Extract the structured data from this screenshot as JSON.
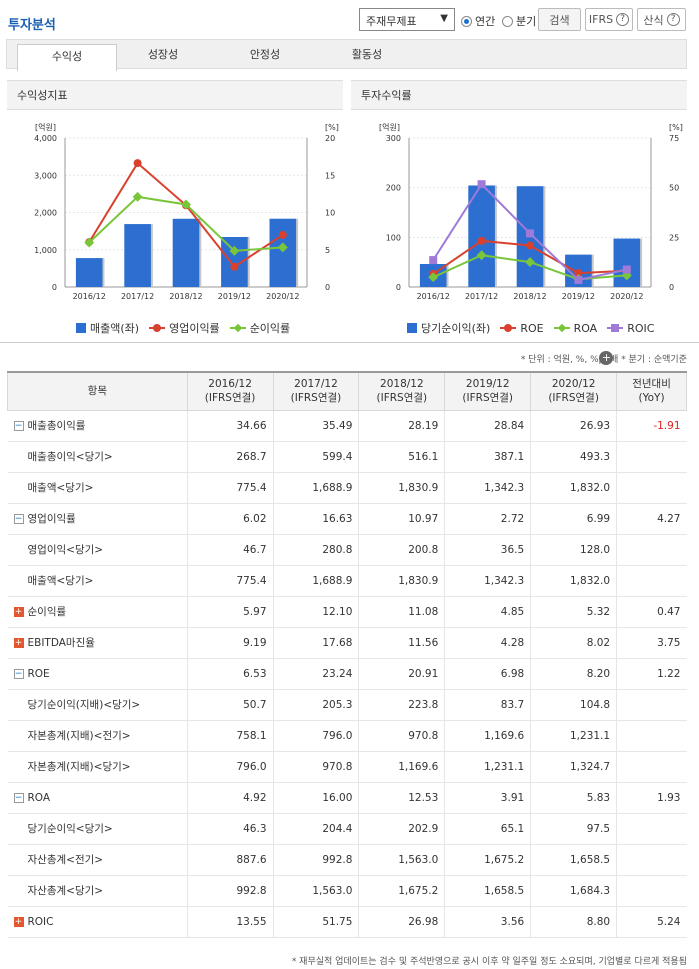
{
  "header": {
    "title": "투자분석",
    "select_value": "주재무제표",
    "radio_annual": "연간",
    "radio_quarter": "분기",
    "search_label": "검색",
    "ifrs_label": "IFRS",
    "formula_label": "산식",
    "help_glyph": "?"
  },
  "tabs": [
    "수익성",
    "성장성",
    "안정성",
    "활동성"
  ],
  "left_panel": {
    "title": "수익성지표",
    "y_left_unit": "[억원]",
    "y_right_unit": "[%]"
  },
  "right_panel": {
    "title": "투자수익률",
    "y_left_unit": "[억원]",
    "y_right_unit": "[%]"
  },
  "chart_data": [
    {
      "type": "bar",
      "categories": [
        "2016/12",
        "2017/12",
        "2018/12",
        "2019/12",
        "2020/12"
      ],
      "ylim": [
        0,
        4000
      ],
      "y2lim": [
        0,
        20
      ],
      "y_ticks": [
        "0",
        "1,000",
        "2,000",
        "3,000",
        "4,000"
      ],
      "y2_ticks": [
        "0",
        "5",
        "10",
        "15",
        "20"
      ],
      "series": [
        {
          "name": "매출액(좌)",
          "kind": "bar",
          "color": "#2c6fd1",
          "values": [
            775.4,
            1688.9,
            1830.9,
            1342.3,
            1832.0
          ]
        },
        {
          "name": "영업이익률",
          "kind": "line",
          "marker": "circle",
          "color": "#d9412e",
          "values": [
            6.02,
            16.63,
            10.97,
            2.72,
            6.99
          ]
        },
        {
          "name": "순이익률",
          "kind": "line",
          "marker": "diamond",
          "color": "#7ac63a",
          "values": [
            5.97,
            12.1,
            11.08,
            4.85,
            5.32
          ]
        }
      ]
    },
    {
      "type": "bar",
      "categories": [
        "2016/12",
        "2017/12",
        "2018/12",
        "2019/12",
        "2020/12"
      ],
      "ylim": [
        0,
        300
      ],
      "y2lim": [
        0,
        75
      ],
      "y_ticks": [
        "0",
        "100",
        "200",
        "300"
      ],
      "y2_ticks": [
        "0",
        "25",
        "50",
        "75"
      ],
      "series": [
        {
          "name": "당기순이익(좌)",
          "kind": "bar",
          "color": "#2c6fd1",
          "values": [
            46.3,
            204.4,
            202.9,
            65.1,
            97.5
          ]
        },
        {
          "name": "ROE",
          "kind": "line",
          "marker": "circle",
          "color": "#d9412e",
          "values": [
            6.53,
            23.24,
            20.91,
            6.98,
            8.2
          ]
        },
        {
          "name": "ROA",
          "kind": "line",
          "marker": "diamond",
          "color": "#7ac63a",
          "values": [
            4.92,
            16.0,
            12.53,
            3.91,
            5.83
          ]
        },
        {
          "name": "ROIC",
          "kind": "line",
          "marker": "square",
          "color": "#a07ad8",
          "values": [
            13.55,
            51.75,
            26.98,
            3.56,
            8.8
          ]
        }
      ]
    }
  ],
  "unit_note": "* 단위 : 억원, %, %p, 배   * 분기 : 순액기준",
  "table": {
    "headers": [
      {
        "l1": "항목",
        "l2": ""
      },
      {
        "l1": "2016/12",
        "l2": "(IFRS연결)"
      },
      {
        "l1": "2017/12",
        "l2": "(IFRS연결)"
      },
      {
        "l1": "2018/12",
        "l2": "(IFRS연결)"
      },
      {
        "l1": "2019/12",
        "l2": "(IFRS연결)"
      },
      {
        "l1": "2020/12",
        "l2": "(IFRS연결)"
      },
      {
        "l1": "전년대비",
        "l2": "(YoY)"
      }
    ],
    "rows": [
      {
        "label": "매출총이익률",
        "toggle": "minus",
        "values": [
          "34.66",
          "35.49",
          "28.19",
          "28.84",
          "26.93",
          "-1.91"
        ],
        "yoy_neg": true
      },
      {
        "label": "매출총이익<당기>",
        "toggle": "",
        "values": [
          "268.7",
          "599.4",
          "516.1",
          "387.1",
          "493.3",
          ""
        ]
      },
      {
        "label": "매출액<당기>",
        "toggle": "",
        "values": [
          "775.4",
          "1,688.9",
          "1,830.9",
          "1,342.3",
          "1,832.0",
          ""
        ]
      },
      {
        "label": "영업이익률",
        "toggle": "minus",
        "values": [
          "6.02",
          "16.63",
          "10.97",
          "2.72",
          "6.99",
          "4.27"
        ]
      },
      {
        "label": "영업이익<당기>",
        "toggle": "",
        "values": [
          "46.7",
          "280.8",
          "200.8",
          "36.5",
          "128.0",
          ""
        ]
      },
      {
        "label": "매출액<당기>",
        "toggle": "",
        "values": [
          "775.4",
          "1,688.9",
          "1,830.9",
          "1,342.3",
          "1,832.0",
          ""
        ]
      },
      {
        "label": "순이익률",
        "toggle": "plus",
        "values": [
          "5.97",
          "12.10",
          "11.08",
          "4.85",
          "5.32",
          "0.47"
        ]
      },
      {
        "label": "EBITDA마진율",
        "toggle": "plus",
        "values": [
          "9.19",
          "17.68",
          "11.56",
          "4.28",
          "8.02",
          "3.75"
        ]
      },
      {
        "label": "ROE",
        "toggle": "minus",
        "values": [
          "6.53",
          "23.24",
          "20.91",
          "6.98",
          "8.20",
          "1.22"
        ]
      },
      {
        "label": "당기순이익(지배)<당기>",
        "toggle": "",
        "values": [
          "50.7",
          "205.3",
          "223.8",
          "83.7",
          "104.8",
          ""
        ]
      },
      {
        "label": "자본총계(지배)<전기>",
        "toggle": "",
        "values": [
          "758.1",
          "796.0",
          "970.8",
          "1,169.6",
          "1,231.1",
          ""
        ]
      },
      {
        "label": "자본총계(지배)<당기>",
        "toggle": "",
        "values": [
          "796.0",
          "970.8",
          "1,169.6",
          "1,231.1",
          "1,324.7",
          ""
        ]
      },
      {
        "label": "ROA",
        "toggle": "minus",
        "values": [
          "4.92",
          "16.00",
          "12.53",
          "3.91",
          "5.83",
          "1.93"
        ]
      },
      {
        "label": "당기순이익<당기>",
        "toggle": "",
        "values": [
          "46.3",
          "204.4",
          "202.9",
          "65.1",
          "97.5",
          ""
        ]
      },
      {
        "label": "자산총계<전기>",
        "toggle": "",
        "values": [
          "887.6",
          "992.8",
          "1,563.0",
          "1,675.2",
          "1,658.5",
          ""
        ]
      },
      {
        "label": "자산총계<당기>",
        "toggle": "",
        "values": [
          "992.8",
          "1,563.0",
          "1,675.2",
          "1,658.5",
          "1,684.3",
          ""
        ]
      },
      {
        "label": "ROIC",
        "toggle": "plus",
        "values": [
          "13.55",
          "51.75",
          "26.98",
          "3.56",
          "8.80",
          "5.24"
        ]
      }
    ]
  },
  "footnote": "* 재무실적 업데이트는 검수 및 주석반영으로 공시 이후 약 일주일 정도 소요되며, 기업별로 다르게 적용됨"
}
